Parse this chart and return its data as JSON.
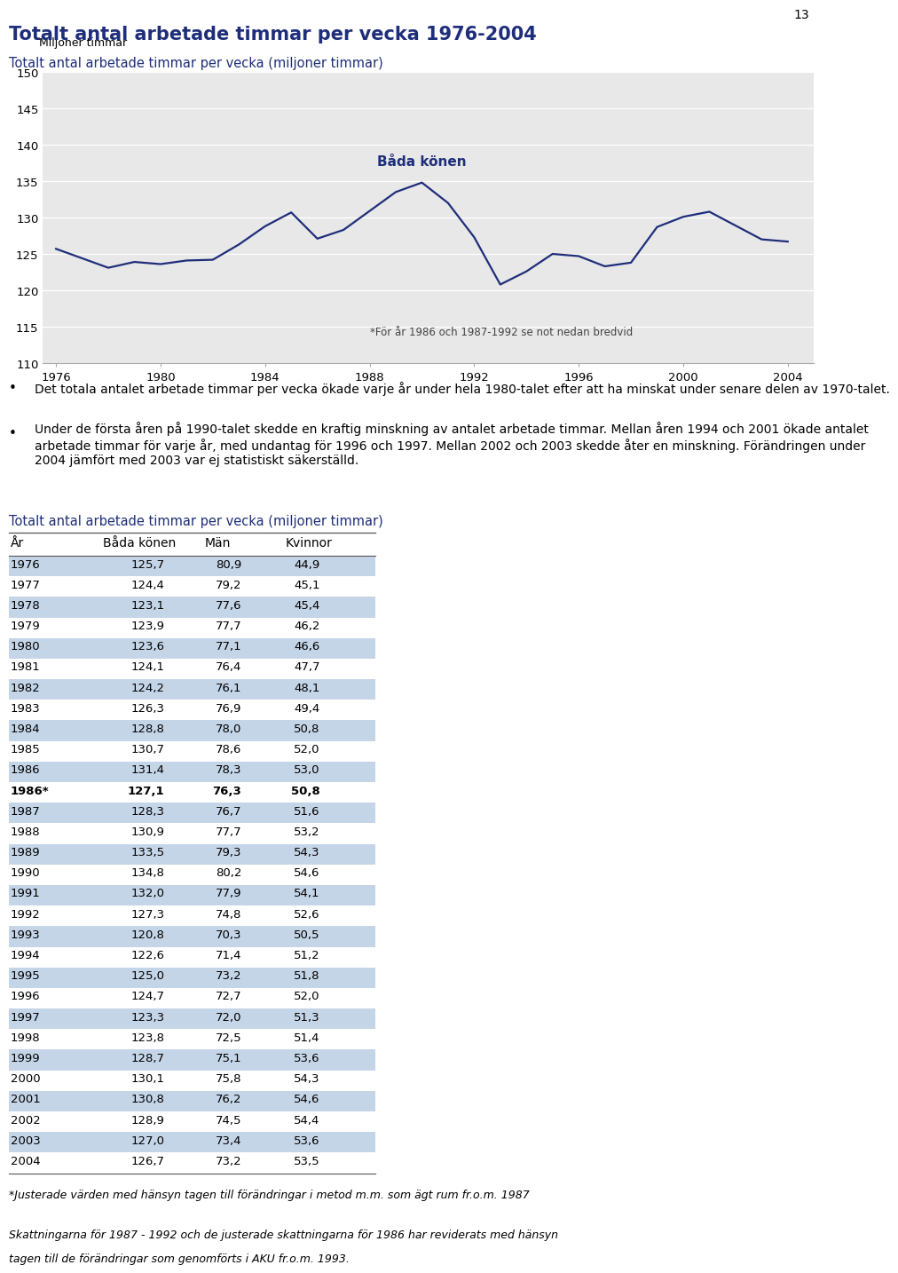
{
  "title": "Totalt antal arbetade timmar per vecka 1976-2004",
  "chart_subtitle": "Totalt antal arbetade timmar per vecka (miljoner timmar)",
  "ylabel": "Miljoner timmar",
  "annotation": "*För år 1986 och 1987-1992 se not nedan bredvid",
  "label_bada": "Båda könen",
  "page_number": "13",
  "years": [
    1976,
    1977,
    1978,
    1979,
    1980,
    1981,
    1982,
    1983,
    1984,
    1985,
    1986,
    1987,
    1988,
    1989,
    1990,
    1991,
    1992,
    1993,
    1994,
    1995,
    1996,
    1997,
    1998,
    1999,
    2000,
    2001,
    2002,
    2003,
    2004
  ],
  "bada_konen": [
    125.7,
    124.4,
    123.1,
    123.9,
    123.6,
    124.1,
    124.2,
    126.3,
    128.8,
    130.7,
    127.1,
    128.3,
    130.9,
    133.5,
    134.8,
    132.0,
    127.3,
    120.8,
    122.6,
    125.0,
    124.7,
    123.3,
    123.8,
    128.7,
    130.1,
    130.8,
    128.9,
    127.0,
    126.7
  ],
  "ylim": [
    110,
    150
  ],
  "yticks": [
    110,
    115,
    120,
    125,
    130,
    135,
    140,
    145,
    150
  ],
  "xticks": [
    1976,
    1980,
    1984,
    1988,
    1992,
    1996,
    2000,
    2004
  ],
  "line_color": "#1f2e7a",
  "title_color": "#1f2e7a",
  "chart_bg": "#e8e8e8",
  "table_alt_color": "#c5d5e8",
  "table_title": "Totalt antal arbetade timmar per vecka (miljoner timmar)",
  "bullet1": "Det totala antalet arbetade timmar per vecka ökade varje år under hela 1980-talet efter att ha minskat under senare delen av 1970-talet.",
  "bullet2_line1": "Under de första åren på 1990-talet skedde en kraftig minskning av antalet arbetade timmar.",
  "bullet2_line2": "Mellan åren 1994 och 2001 ökade antalet arbetade timmar för varje år, med undantag för 1996",
  "bullet2_line3": "och 1997. Mellan 2002 och 2003 skedde åter en minskning. Förändringen under 2004 jämfört",
  "bullet2_line4": "med 2003 var ej statistiskt säkerställd.",
  "footnote1": "*Justerade värden med hänsyn tagen till förändringar i metod m.m. som ägt rum fr.o.m. 1987",
  "footnote2_line1": "Skattningarna för 1987 - 1992 och de justerade skattningarna för 1986 har reviderats med hänsyn",
  "footnote2_line2": "tagen till de förändringar som genomförts i AKU fr.o.m. 1993.",
  "table_rows": [
    [
      "1976",
      "125,7",
      "80,9",
      "44,9"
    ],
    [
      "1977",
      "124,4",
      "79,2",
      "45,1"
    ],
    [
      "1978",
      "123,1",
      "77,6",
      "45,4"
    ],
    [
      "1979",
      "123,9",
      "77,7",
      "46,2"
    ],
    [
      "1980",
      "123,6",
      "77,1",
      "46,6"
    ],
    [
      "1981",
      "124,1",
      "76,4",
      "47,7"
    ],
    [
      "1982",
      "124,2",
      "76,1",
      "48,1"
    ],
    [
      "1983",
      "126,3",
      "76,9",
      "49,4"
    ],
    [
      "1984",
      "128,8",
      "78,0",
      "50,8"
    ],
    [
      "1985",
      "130,7",
      "78,6",
      "52,0"
    ],
    [
      "1986",
      "131,4",
      "78,3",
      "53,0"
    ],
    [
      "1986*",
      "127,1",
      "76,3",
      "50,8"
    ],
    [
      "1987",
      "128,3",
      "76,7",
      "51,6"
    ],
    [
      "1988",
      "130,9",
      "77,7",
      "53,2"
    ],
    [
      "1989",
      "133,5",
      "79,3",
      "54,3"
    ],
    [
      "1990",
      "134,8",
      "80,2",
      "54,6"
    ],
    [
      "1991",
      "132,0",
      "77,9",
      "54,1"
    ],
    [
      "1992",
      "127,3",
      "74,8",
      "52,6"
    ],
    [
      "1993",
      "120,8",
      "70,3",
      "50,5"
    ],
    [
      "1994",
      "122,6",
      "71,4",
      "51,2"
    ],
    [
      "1995",
      "125,0",
      "73,2",
      "51,8"
    ],
    [
      "1996",
      "124,7",
      "72,7",
      "52,0"
    ],
    [
      "1997",
      "123,3",
      "72,0",
      "51,3"
    ],
    [
      "1998",
      "123,8",
      "72,5",
      "51,4"
    ],
    [
      "1999",
      "128,7",
      "75,1",
      "53,6"
    ],
    [
      "2000",
      "130,1",
      "75,8",
      "54,3"
    ],
    [
      "2001",
      "130,8",
      "76,2",
      "54,6"
    ],
    [
      "2002",
      "128,9",
      "74,5",
      "54,4"
    ],
    [
      "2003",
      "127,0",
      "73,4",
      "53,6"
    ],
    [
      "2004",
      "126,7",
      "73,2",
      "53,5"
    ]
  ]
}
